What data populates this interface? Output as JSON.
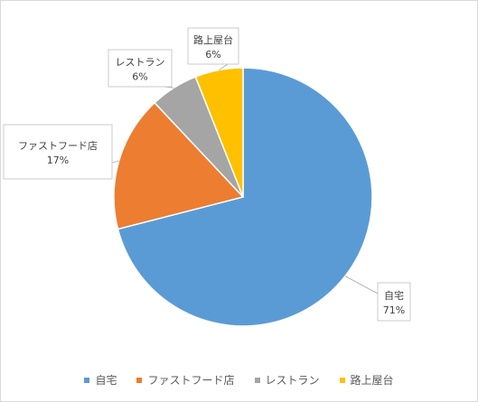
{
  "chart_data": {
    "type": "pie",
    "categories": [
      "自宅",
      "ファストフード店",
      "レストラン",
      "路上屋台"
    ],
    "values": [
      71,
      17,
      6,
      6
    ],
    "value_labels": [
      "71%",
      "17%",
      "6%",
      "6%"
    ],
    "colors": [
      "#5b9bd5",
      "#ed7d31",
      "#a5a5a5",
      "#ffc000"
    ],
    "start_angle_deg": 0,
    "direction": "clockwise",
    "legend_position": "bottom",
    "title": ""
  }
}
